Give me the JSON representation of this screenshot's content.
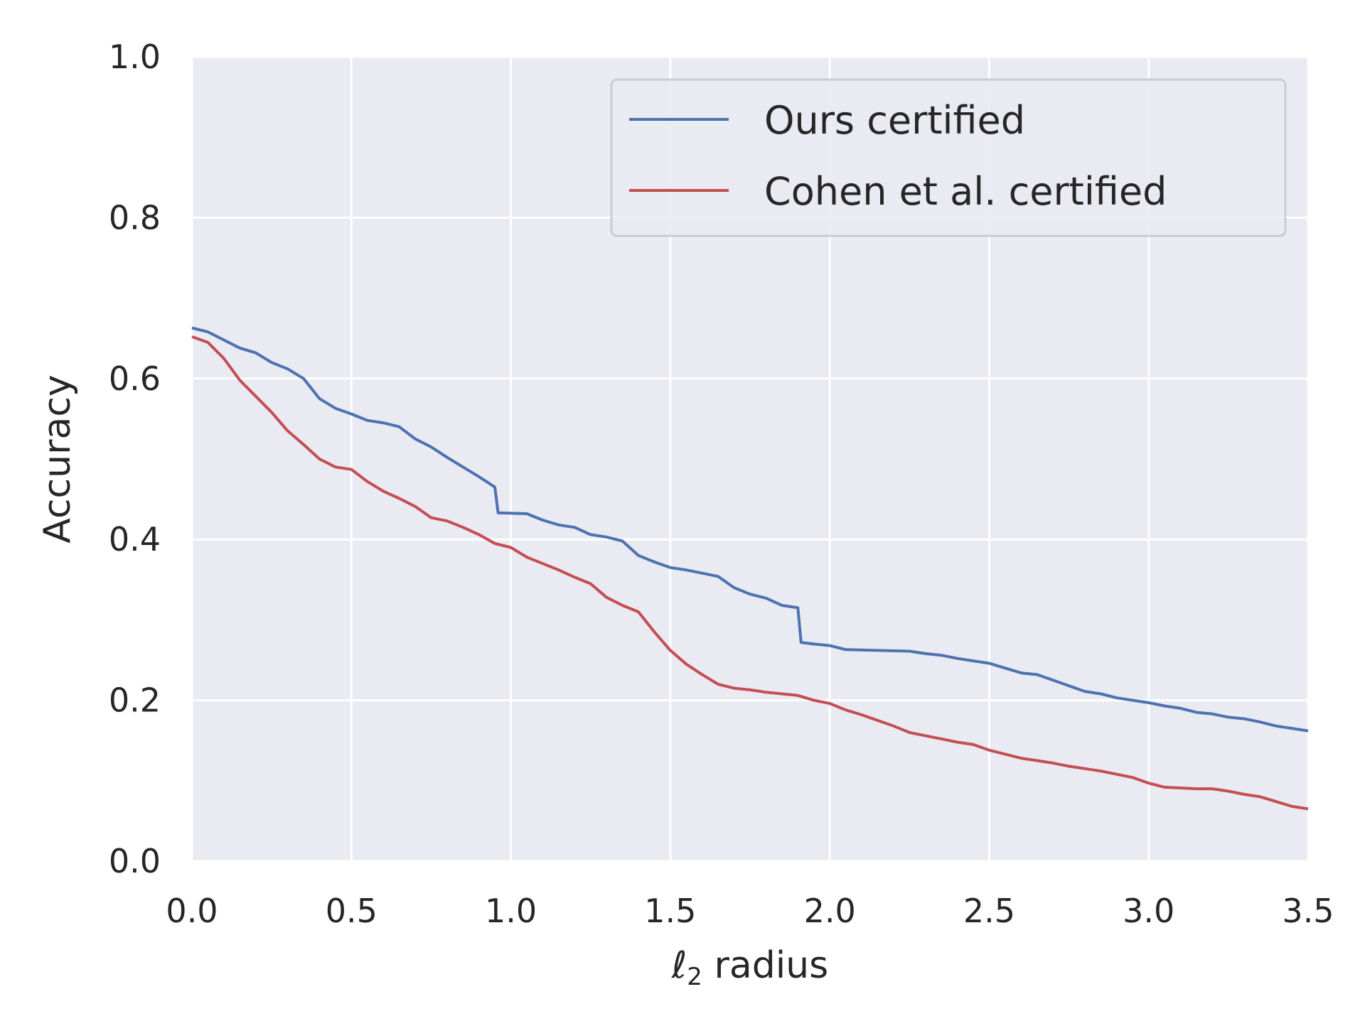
{
  "chart_data": {
    "type": "line",
    "title": "",
    "xlabel_symbol": "ℓ",
    "xlabel_subscript": "2",
    "xlabel_rest": " radius",
    "ylabel": "Accuracy",
    "xlim": [
      0.0,
      3.5
    ],
    "ylim": [
      0.0,
      1.0
    ],
    "xticks": [
      "0.0",
      "0.5",
      "1.0",
      "1.5",
      "2.0",
      "2.5",
      "3.0",
      "3.5"
    ],
    "yticks": [
      "0.0",
      "0.2",
      "0.4",
      "0.6",
      "0.8",
      "1.0"
    ],
    "grid": true,
    "legend_position": "top-right",
    "background_color": "#eaeaf2",
    "grid_color": "#ffffff",
    "series": [
      {
        "name": "Ours certified",
        "color": "#4c72b0",
        "points": [
          [
            0.0,
            0.663
          ],
          [
            0.05,
            0.658
          ],
          [
            0.1,
            0.648
          ],
          [
            0.15,
            0.638
          ],
          [
            0.2,
            0.632
          ],
          [
            0.25,
            0.62
          ],
          [
            0.3,
            0.612
          ],
          [
            0.35,
            0.6
          ],
          [
            0.4,
            0.575
          ],
          [
            0.45,
            0.563
          ],
          [
            0.5,
            0.556
          ],
          [
            0.55,
            0.548
          ],
          [
            0.6,
            0.545
          ],
          [
            0.65,
            0.54
          ],
          [
            0.7,
            0.525
          ],
          [
            0.75,
            0.515
          ],
          [
            0.8,
            0.502
          ],
          [
            0.85,
            0.49
          ],
          [
            0.9,
            0.478
          ],
          [
            0.95,
            0.465
          ],
          [
            0.96,
            0.433
          ],
          [
            1.05,
            0.432
          ],
          [
            1.1,
            0.424
          ],
          [
            1.15,
            0.418
          ],
          [
            1.2,
            0.415
          ],
          [
            1.25,
            0.406
          ],
          [
            1.3,
            0.403
          ],
          [
            1.35,
            0.398
          ],
          [
            1.4,
            0.38
          ],
          [
            1.45,
            0.372
          ],
          [
            1.5,
            0.365
          ],
          [
            1.55,
            0.362
          ],
          [
            1.6,
            0.358
          ],
          [
            1.65,
            0.354
          ],
          [
            1.7,
            0.34
          ],
          [
            1.75,
            0.332
          ],
          [
            1.8,
            0.327
          ],
          [
            1.85,
            0.318
          ],
          [
            1.9,
            0.315
          ],
          [
            1.91,
            0.272
          ],
          [
            1.95,
            0.27
          ],
          [
            2.0,
            0.268
          ],
          [
            2.05,
            0.263
          ],
          [
            2.15,
            0.262
          ],
          [
            2.25,
            0.261
          ],
          [
            2.3,
            0.258
          ],
          [
            2.35,
            0.256
          ],
          [
            2.4,
            0.252
          ],
          [
            2.45,
            0.249
          ],
          [
            2.5,
            0.246
          ],
          [
            2.55,
            0.24
          ],
          [
            2.6,
            0.234
          ],
          [
            2.65,
            0.232
          ],
          [
            2.7,
            0.225
          ],
          [
            2.75,
            0.218
          ],
          [
            2.8,
            0.211
          ],
          [
            2.85,
            0.208
          ],
          [
            2.9,
            0.203
          ],
          [
            2.95,
            0.2
          ],
          [
            3.0,
            0.197
          ],
          [
            3.05,
            0.193
          ],
          [
            3.1,
            0.19
          ],
          [
            3.15,
            0.185
          ],
          [
            3.2,
            0.183
          ],
          [
            3.25,
            0.179
          ],
          [
            3.3,
            0.177
          ],
          [
            3.35,
            0.173
          ],
          [
            3.4,
            0.168
          ],
          [
            3.45,
            0.165
          ],
          [
            3.5,
            0.162
          ]
        ]
      },
      {
        "name": "Cohen et al. certified",
        "color": "#c44e52",
        "points": [
          [
            0.0,
            0.652
          ],
          [
            0.05,
            0.645
          ],
          [
            0.1,
            0.625
          ],
          [
            0.15,
            0.598
          ],
          [
            0.2,
            0.578
          ],
          [
            0.25,
            0.558
          ],
          [
            0.3,
            0.535
          ],
          [
            0.35,
            0.518
          ],
          [
            0.4,
            0.5
          ],
          [
            0.45,
            0.49
          ],
          [
            0.5,
            0.487
          ],
          [
            0.55,
            0.472
          ],
          [
            0.6,
            0.46
          ],
          [
            0.65,
            0.451
          ],
          [
            0.7,
            0.441
          ],
          [
            0.75,
            0.427
          ],
          [
            0.8,
            0.423
          ],
          [
            0.85,
            0.415
          ],
          [
            0.9,
            0.406
          ],
          [
            0.95,
            0.395
          ],
          [
            1.0,
            0.39
          ],
          [
            1.05,
            0.378
          ],
          [
            1.1,
            0.37
          ],
          [
            1.15,
            0.362
          ],
          [
            1.2,
            0.353
          ],
          [
            1.25,
            0.345
          ],
          [
            1.3,
            0.328
          ],
          [
            1.35,
            0.318
          ],
          [
            1.4,
            0.31
          ],
          [
            1.45,
            0.285
          ],
          [
            1.5,
            0.262
          ],
          [
            1.55,
            0.245
          ],
          [
            1.6,
            0.232
          ],
          [
            1.65,
            0.22
          ],
          [
            1.7,
            0.215
          ],
          [
            1.75,
            0.213
          ],
          [
            1.8,
            0.21
          ],
          [
            1.85,
            0.208
          ],
          [
            1.9,
            0.206
          ],
          [
            1.95,
            0.2
          ],
          [
            2.0,
            0.196
          ],
          [
            2.05,
            0.188
          ],
          [
            2.1,
            0.182
          ],
          [
            2.15,
            0.175
          ],
          [
            2.2,
            0.168
          ],
          [
            2.25,
            0.16
          ],
          [
            2.3,
            0.156
          ],
          [
            2.35,
            0.152
          ],
          [
            2.4,
            0.148
          ],
          [
            2.45,
            0.145
          ],
          [
            2.5,
            0.138
          ],
          [
            2.55,
            0.133
          ],
          [
            2.6,
            0.128
          ],
          [
            2.65,
            0.125
          ],
          [
            2.7,
            0.122
          ],
          [
            2.75,
            0.118
          ],
          [
            2.8,
            0.115
          ],
          [
            2.85,
            0.112
          ],
          [
            2.9,
            0.108
          ],
          [
            2.95,
            0.104
          ],
          [
            3.0,
            0.097
          ],
          [
            3.05,
            0.092
          ],
          [
            3.1,
            0.091
          ],
          [
            3.15,
            0.09
          ],
          [
            3.2,
            0.09
          ],
          [
            3.25,
            0.087
          ],
          [
            3.3,
            0.083
          ],
          [
            3.35,
            0.08
          ],
          [
            3.4,
            0.074
          ],
          [
            3.45,
            0.068
          ],
          [
            3.5,
            0.065
          ]
        ]
      }
    ]
  }
}
